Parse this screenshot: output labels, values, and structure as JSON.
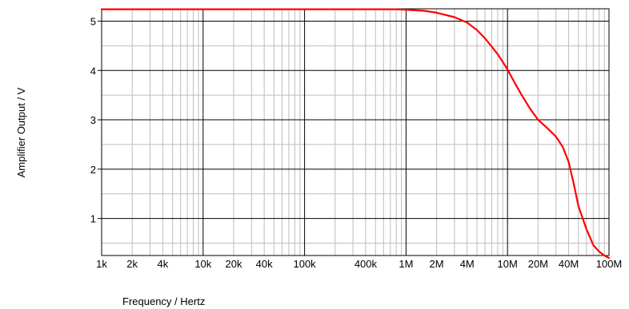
{
  "chart_data": {
    "type": "line",
    "title": "",
    "xlabel": "Frequency / Hertz",
    "ylabel": "Amplifier Output / V",
    "x_scale": "log",
    "xlim": [
      1000,
      100000000
    ],
    "ylim": [
      0.25,
      5.25
    ],
    "grid": true,
    "x_ticks": [
      {
        "value": 1000,
        "label": "1k"
      },
      {
        "value": 2000,
        "label": "2k"
      },
      {
        "value": 4000,
        "label": "4k"
      },
      {
        "value": 10000,
        "label": "10k"
      },
      {
        "value": 20000,
        "label": "20k"
      },
      {
        "value": 40000,
        "label": "40k"
      },
      {
        "value": 100000,
        "label": "100k"
      },
      {
        "value": 400000,
        "label": "400k"
      },
      {
        "value": 1000000,
        "label": "1M"
      },
      {
        "value": 2000000,
        "label": "2M"
      },
      {
        "value": 4000000,
        "label": "4M"
      },
      {
        "value": 10000000,
        "label": "10M"
      },
      {
        "value": 20000000,
        "label": "20M"
      },
      {
        "value": 40000000,
        "label": "40M"
      },
      {
        "value": 100000000,
        "label": "100M"
      }
    ],
    "y_ticks": [
      {
        "value": 1,
        "label": "1"
      },
      {
        "value": 2,
        "label": "2"
      },
      {
        "value": 3,
        "label": "3"
      },
      {
        "value": 4,
        "label": "4"
      },
      {
        "value": 5,
        "label": "5"
      }
    ],
    "series": [
      {
        "color": "#ff0000",
        "points": [
          [
            1000,
            5.24
          ],
          [
            100000,
            5.24
          ],
          [
            800000,
            5.24
          ],
          [
            1000000,
            5.23
          ],
          [
            1500000,
            5.21
          ],
          [
            2000000,
            5.17
          ],
          [
            3000000,
            5.08
          ],
          [
            4000000,
            4.97
          ],
          [
            5000000,
            4.82
          ],
          [
            6000000,
            4.65
          ],
          [
            7000000,
            4.48
          ],
          [
            8000000,
            4.33
          ],
          [
            9000000,
            4.17
          ],
          [
            10000000,
            4.02
          ],
          [
            12000000,
            3.72
          ],
          [
            14000000,
            3.48
          ],
          [
            17000000,
            3.2
          ],
          [
            20000000,
            3.0
          ],
          [
            25000000,
            2.82
          ],
          [
            30000000,
            2.66
          ],
          [
            35000000,
            2.45
          ],
          [
            40000000,
            2.15
          ],
          [
            45000000,
            1.7
          ],
          [
            50000000,
            1.25
          ],
          [
            60000000,
            0.78
          ],
          [
            70000000,
            0.46
          ],
          [
            80000000,
            0.33
          ],
          [
            90000000,
            0.25
          ],
          [
            100000000,
            0.2
          ]
        ]
      }
    ]
  }
}
